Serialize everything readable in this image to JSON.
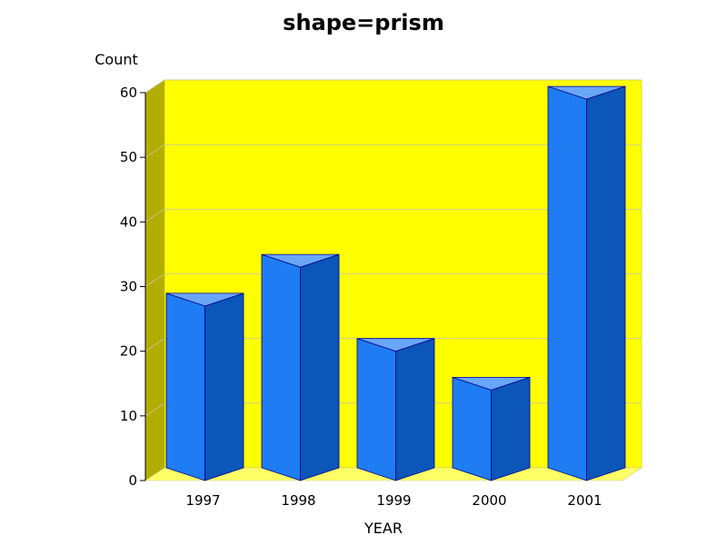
{
  "chart_data": {
    "type": "bar",
    "title": "shape=prism",
    "xlabel": "YEAR",
    "ylabel": "Count",
    "categories": [
      "1997",
      "1998",
      "1999",
      "2000",
      "2001"
    ],
    "values": [
      27,
      33,
      20,
      14,
      59
    ],
    "ylim": [
      0,
      60
    ],
    "yticks": [
      "0",
      "10",
      "20",
      "30",
      "40",
      "50",
      "60"
    ],
    "grid": true,
    "bar_shape": "prism",
    "colors": {
      "background_wall": "#ffff00",
      "side_wall": "#b3ad00",
      "floor": "#ffff66",
      "bar_front": "#1f7cf2",
      "bar_side": "#0b56b8",
      "bar_top": "#6aa6f8",
      "bar_outline": "#00008b",
      "gridline": "#c8c8a0"
    }
  }
}
